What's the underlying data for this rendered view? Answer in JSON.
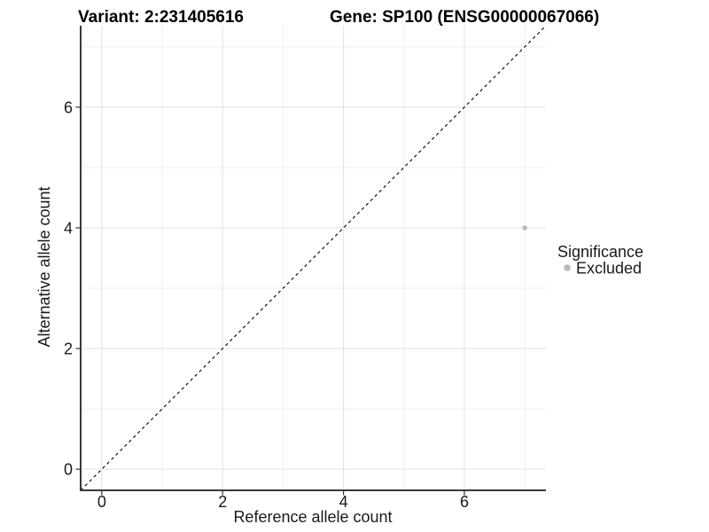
{
  "titles": {
    "variant": "Variant: 2:231405616",
    "gene": "Gene: SP100 (ENSG00000067066)"
  },
  "chart_data": {
    "type": "scatter",
    "title": "Variant: 2:231405616   Gene: SP100 (ENSG00000067066)",
    "xlabel": "Reference allele count",
    "ylabel": "Alternative allele count",
    "xlim": [
      -0.35,
      7.35
    ],
    "ylim": [
      -0.35,
      7.35
    ],
    "x_ticks": [
      0,
      2,
      4,
      6
    ],
    "y_ticks": [
      0,
      2,
      4,
      6
    ],
    "x_minor_gridlines": [
      1,
      3,
      5,
      7
    ],
    "y_minor_gridlines": [
      1,
      3,
      5,
      7
    ],
    "grid": true,
    "series": [
      {
        "name": "Excluded",
        "points": [
          {
            "x": 7,
            "y": 4
          }
        ],
        "color": "#b9b9b9"
      }
    ],
    "reference_line": {
      "kind": "identity",
      "slope": 1,
      "intercept": 0,
      "style": "dashed",
      "color": "#000000"
    },
    "legend": {
      "title": "Significance",
      "position": "right",
      "entries": [
        {
          "label": "Excluded",
          "color": "#b9b9b9"
        }
      ]
    }
  },
  "colors": {
    "background": "#ffffff",
    "grid_major": "#e2e2e2",
    "grid_minor": "#efefef",
    "axis_line": "#3a3a3a",
    "tick_mark": "#333333",
    "text": "#1a1a1a",
    "point": "#b9b9b9",
    "dashed_line": "#000000"
  }
}
